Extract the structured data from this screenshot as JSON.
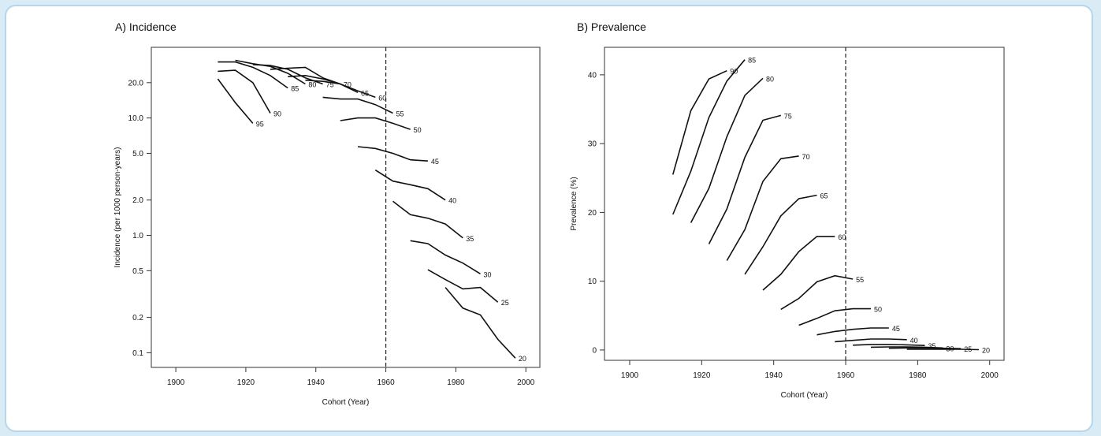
{
  "chart_data": [
    {
      "type": "line",
      "title": "A) Incidence",
      "xlabel": "Cohort (Year)",
      "ylabel": "Incidence (per 1000 person-years)",
      "xlim": [
        1893,
        2004
      ],
      "xticks": [
        1900,
        1920,
        1940,
        1960,
        1980,
        2000
      ],
      "ylog": true,
      "ylim": [
        0.075,
        40
      ],
      "yticks": [
        0.1,
        0.2,
        0.5,
        1.0,
        2.0,
        5.0,
        10.0,
        20.0
      ],
      "ytick_labels": [
        "0.1",
        "0.2",
        "0.5",
        "1.0",
        "2.0",
        "5.0",
        "10.0",
        "20.0"
      ],
      "vline": 1960,
      "grid": false,
      "series": [
        {
          "name": "95",
          "points": [
            [
              1912,
              21.5
            ],
            [
              1917,
              13.5
            ],
            [
              1922,
              9.0
            ]
          ]
        },
        {
          "name": "90",
          "points": [
            [
              1912,
              25
            ],
            [
              1917,
              25.5
            ],
            [
              1922,
              20
            ],
            [
              1927,
              11
            ]
          ]
        },
        {
          "name": "85",
          "points": [
            [
              1912,
              30
            ],
            [
              1917,
              30
            ],
            [
              1922,
              27
            ],
            [
              1927,
              23
            ],
            [
              1932,
              18
            ]
          ]
        },
        {
          "name": "80",
          "points": [
            [
              1917,
              31
            ],
            [
              1922,
              29
            ],
            [
              1927,
              27.5
            ],
            [
              1932,
              24
            ],
            [
              1937,
              19.5
            ]
          ]
        },
        {
          "name": "75",
          "points": [
            [
              1922,
              28.5
            ],
            [
              1927,
              28
            ],
            [
              1932,
              26
            ],
            [
              1937,
              22
            ],
            [
              1942,
              19.5
            ]
          ]
        },
        {
          "name": "70",
          "points": [
            [
              1927,
              26
            ],
            [
              1932,
              26.5
            ],
            [
              1937,
              27
            ],
            [
              1942,
              22
            ],
            [
              1947,
              19.5
            ]
          ]
        },
        {
          "name": "65",
          "points": [
            [
              1932,
              22.5
            ],
            [
              1937,
              23
            ],
            [
              1942,
              21.5
            ],
            [
              1947,
              19.5
            ],
            [
              1952,
              16.5
            ]
          ]
        },
        {
          "name": "60",
          "points": [
            [
              1937,
              21
            ],
            [
              1942,
              20.5
            ],
            [
              1947,
              19.5
            ],
            [
              1952,
              17
            ],
            [
              1957,
              15
            ]
          ]
        },
        {
          "name": "55",
          "points": [
            [
              1942,
              15
            ],
            [
              1947,
              14.5
            ],
            [
              1952,
              14.5
            ],
            [
              1957,
              13
            ],
            [
              1962,
              11
            ]
          ]
        },
        {
          "name": "50",
          "points": [
            [
              1947,
              9.5
            ],
            [
              1952,
              10
            ],
            [
              1957,
              10
            ],
            [
              1962,
              9
            ],
            [
              1967,
              8
            ]
          ]
        },
        {
          "name": "45",
          "points": [
            [
              1952,
              5.7
            ],
            [
              1957,
              5.5
            ],
            [
              1962,
              5.0
            ],
            [
              1967,
              4.4
            ],
            [
              1972,
              4.3
            ]
          ]
        },
        {
          "name": "40",
          "points": [
            [
              1957,
              3.6
            ],
            [
              1962,
              2.9
            ],
            [
              1967,
              2.7
            ],
            [
              1972,
              2.5
            ],
            [
              1977,
              2.0
            ]
          ]
        },
        {
          "name": "35",
          "points": [
            [
              1962,
              1.95
            ],
            [
              1967,
              1.5
            ],
            [
              1972,
              1.4
            ],
            [
              1977,
              1.25
            ],
            [
              1982,
              0.95
            ]
          ]
        },
        {
          "name": "30",
          "points": [
            [
              1967,
              0.9
            ],
            [
              1972,
              0.85
            ],
            [
              1977,
              0.68
            ],
            [
              1982,
              0.58
            ],
            [
              1987,
              0.47
            ]
          ]
        },
        {
          "name": "25",
          "points": [
            [
              1972,
              0.51
            ],
            [
              1977,
              0.42
            ],
            [
              1982,
              0.35
            ],
            [
              1987,
              0.36
            ],
            [
              1992,
              0.27
            ]
          ]
        },
        {
          "name": "20",
          "points": [
            [
              1977,
              0.36
            ],
            [
              1982,
              0.24
            ],
            [
              1987,
              0.21
            ],
            [
              1992,
              0.13
            ],
            [
              1997,
              0.09
            ]
          ]
        }
      ]
    },
    {
      "type": "line",
      "title": "B) Prevalence",
      "xlabel": "Cohort (Year)",
      "ylabel": "Prevalence (%)",
      "xlim": [
        1893,
        2004
      ],
      "xticks": [
        1900,
        1920,
        1940,
        1960,
        1980,
        2000
      ],
      "ylim": [
        -1.5,
        44
      ],
      "yticks": [
        0,
        10,
        20,
        30,
        40
      ],
      "vline": 1960,
      "grid": false,
      "series": [
        {
          "name": "90",
          "points": [
            [
              1912,
              25.5
            ],
            [
              1917,
              34.8
            ],
            [
              1922,
              39.4
            ],
            [
              1927,
              40.6
            ]
          ]
        },
        {
          "name": "85",
          "points": [
            [
              1912,
              19.7
            ],
            [
              1917,
              26
            ],
            [
              1922,
              33.8
            ],
            [
              1927,
              39.1
            ],
            [
              1932,
              42.2
            ]
          ]
        },
        {
          "name": "80",
          "points": [
            [
              1917,
              18.5
            ],
            [
              1922,
              23.5
            ],
            [
              1927,
              31
            ],
            [
              1932,
              37
            ],
            [
              1937,
              39.5
            ]
          ]
        },
        {
          "name": "75",
          "points": [
            [
              1922,
              15.4
            ],
            [
              1927,
              20.5
            ],
            [
              1932,
              28
            ],
            [
              1937,
              33.4
            ],
            [
              1942,
              34.1
            ]
          ]
        },
        {
          "name": "70",
          "points": [
            [
              1927,
              13
            ],
            [
              1932,
              17.5
            ],
            [
              1937,
              24.5
            ],
            [
              1942,
              27.8
            ],
            [
              1947,
              28.2
            ]
          ]
        },
        {
          "name": "65",
          "points": [
            [
              1932,
              11
            ],
            [
              1937,
              15
            ],
            [
              1942,
              19.5
            ],
            [
              1947,
              22
            ],
            [
              1952,
              22.5
            ]
          ]
        },
        {
          "name": "60",
          "points": [
            [
              1937,
              8.7
            ],
            [
              1942,
              11
            ],
            [
              1947,
              14.3
            ],
            [
              1952,
              16.5
            ],
            [
              1957,
              16.5
            ]
          ]
        },
        {
          "name": "55",
          "points": [
            [
              1942,
              5.9
            ],
            [
              1947,
              7.5
            ],
            [
              1952,
              9.9
            ],
            [
              1957,
              10.8
            ],
            [
              1962,
              10.3
            ]
          ]
        },
        {
          "name": "50",
          "points": [
            [
              1947,
              3.6
            ],
            [
              1952,
              4.6
            ],
            [
              1957,
              5.7
            ],
            [
              1962,
              6.0
            ],
            [
              1967,
              6.0
            ]
          ]
        },
        {
          "name": "45",
          "points": [
            [
              1952,
              2.2
            ],
            [
              1957,
              2.7
            ],
            [
              1962,
              3.0
            ],
            [
              1967,
              3.2
            ],
            [
              1972,
              3.2
            ]
          ]
        },
        {
          "name": "40",
          "points": [
            [
              1957,
              1.2
            ],
            [
              1962,
              1.4
            ],
            [
              1967,
              1.6
            ],
            [
              1972,
              1.6
            ],
            [
              1977,
              1.5
            ]
          ]
        },
        {
          "name": "35",
          "points": [
            [
              1962,
              0.7
            ],
            [
              1967,
              0.8
            ],
            [
              1972,
              0.8
            ],
            [
              1977,
              0.75
            ],
            [
              1982,
              0.65
            ]
          ]
        },
        {
          "name": "30",
          "points": [
            [
              1967,
              0.4
            ],
            [
              1972,
              0.45
            ],
            [
              1977,
              0.45
            ],
            [
              1982,
              0.4
            ],
            [
              1987,
              0.3
            ]
          ]
        },
        {
          "name": "25",
          "points": [
            [
              1972,
              0.25
            ],
            [
              1977,
              0.3
            ],
            [
              1982,
              0.3
            ],
            [
              1987,
              0.25
            ],
            [
              1992,
              0.2
            ]
          ]
        },
        {
          "name": "20",
          "points": [
            [
              1977,
              0.1
            ],
            [
              1982,
              0.12
            ],
            [
              1987,
              0.12
            ],
            [
              1992,
              0.1
            ],
            [
              1997,
              0.05
            ]
          ]
        }
      ]
    }
  ]
}
